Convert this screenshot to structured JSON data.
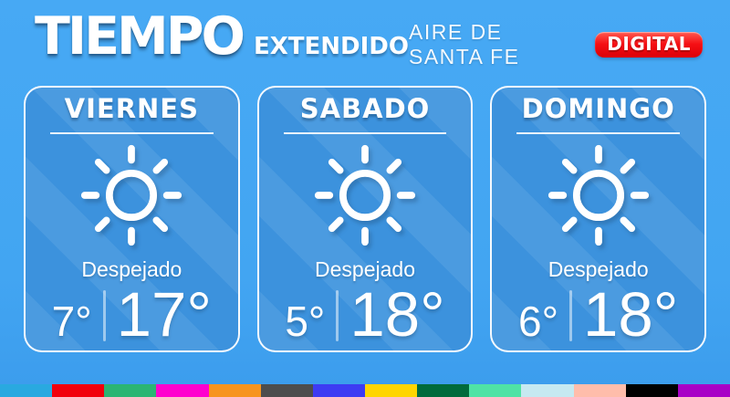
{
  "header": {
    "title": "TIEMPO",
    "subtitle": "EXTENDIDO",
    "brand": "AIRE DE SANTA FE",
    "badge": "DIGITAL",
    "badge_color": "#e4000f"
  },
  "cards": [
    {
      "day": "VIERNES",
      "icon": "sun-icon",
      "condition": "Despejado",
      "temp_min": "7°",
      "temp_max": "17°"
    },
    {
      "day": "SABADO",
      "icon": "sun-icon",
      "condition": "Despejado",
      "temp_min": "5°",
      "temp_max": "18°"
    },
    {
      "day": "DOMINGO",
      "icon": "sun-icon",
      "condition": "Despejado",
      "temp_min": "6°",
      "temp_max": "18°"
    }
  ],
  "colors": {
    "background": "#42a5f2",
    "card": "#3c92dd",
    "accent_red": "#ed0c12"
  },
  "footer": {
    "stripe_colors": [
      "#29a9e0",
      "#f2000c",
      "#2bb573",
      "#ff00ce",
      "#f7941e",
      "#4d4d4d",
      "#3d3bf3",
      "#ffd500",
      "#006b3c",
      "#4fe3a5",
      "#c6e9f1",
      "#ffbdab",
      "#000000",
      "#a800c6"
    ]
  }
}
